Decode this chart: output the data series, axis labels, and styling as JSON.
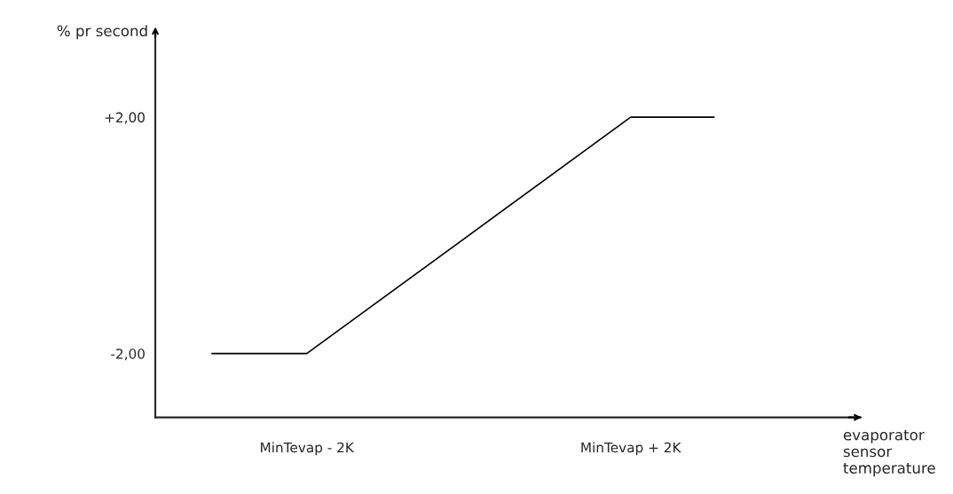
{
  "chart_data": {
    "type": "line",
    "x": [
      -3.17,
      -2,
      2,
      3.03
    ],
    "values": [
      -2,
      -2,
      2,
      2
    ],
    "color": "#000000",
    "xlim": [
      -3.87,
      4.84
    ],
    "ylim": [
      -3.08,
      3.44
    ],
    "xticks": [
      {
        "value": -2,
        "label": "MinTevap - 2K"
      },
      {
        "value": 2,
        "label": "MinTevap + 2K"
      }
    ],
    "yticks": [
      {
        "value": -2,
        "label": "-2,00"
      },
      {
        "value": 2,
        "label": "+2,00"
      }
    ],
    "xlabel": "evaporator\nsensor\ntemperature",
    "ylabel": "% pr second",
    "grid": false,
    "marker": "none",
    "line_style": "solid"
  }
}
